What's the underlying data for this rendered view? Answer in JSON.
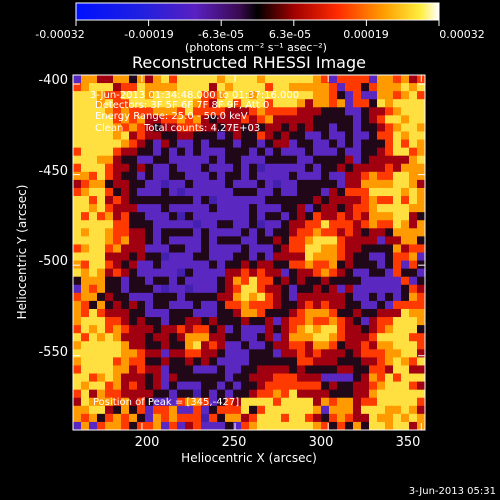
{
  "chart_data": {
    "type": "heatmap",
    "title": "Reconstructed RHESSI Image",
    "xlabel": "Heliocentric X (arcsec)",
    "ylabel": "Heliocentric Y (arcsec)",
    "xlim": [
      163,
      352
    ],
    "ylim": [
      -591,
      -395
    ],
    "x_ticks": [
      "200",
      "250",
      "300",
      "350"
    ],
    "y_ticks": [
      "-400",
      "-450",
      "-500",
      "-550"
    ],
    "x_tick_values": [
      200,
      250,
      300,
      350
    ],
    "y_tick_values": [
      -400,
      -450,
      -500,
      -550
    ],
    "colorbar": {
      "unit": "(photons cm⁻² s⁻¹ asec⁻²)",
      "ticks": [
        "-0.00032",
        "-0.00019",
        "-6.3e-05",
        "6.3e-05",
        "0.00019",
        "0.00032"
      ],
      "range": [
        -0.00032,
        0.00032
      ]
    },
    "annotations": {
      "time_range": "3-Jun-2013 01:34:48.000 to 01:37:16.000",
      "detectors": "Detectors: 3F 5F 6F 7F 8F 9F, Att 0",
      "energy": "Energy Range: 25.0 - 50.0 keV",
      "clean_label": "Clean",
      "total_counts": "Total counts: 4.27E+03",
      "peak": "Position of Peak = [345,-427]"
    },
    "peak_position": [
      345,
      -427
    ],
    "timestamp": "3-Jun-2013 05:31"
  }
}
